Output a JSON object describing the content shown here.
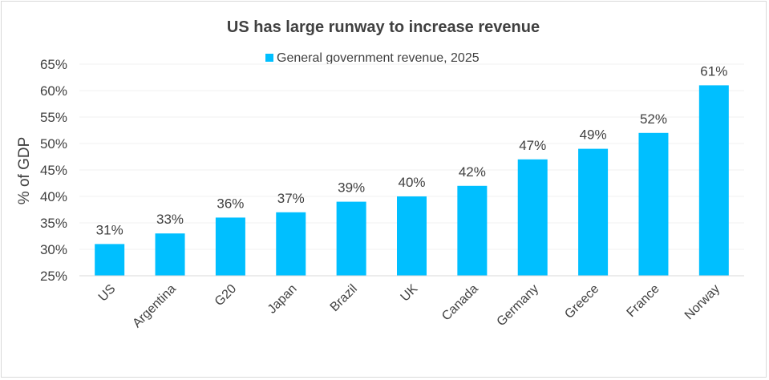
{
  "chart_data": {
    "type": "bar",
    "title": "US has large runway to increase revenue",
    "ylabel": "% of GDP",
    "xlabel": "",
    "categories": [
      "US",
      "Argentina",
      "G20",
      "Japan",
      "Brazil",
      "UK",
      "Canada",
      "Germany",
      "Greece",
      "France",
      "Norway"
    ],
    "series": [
      {
        "name": "General government revenue, 2025",
        "values": [
          31,
          33,
          36,
          37,
          39,
          40,
          42,
          47,
          49,
          52,
          61
        ],
        "data_labels": [
          "31%",
          "33%",
          "36%",
          "37%",
          "39%",
          "40%",
          "42%",
          "47%",
          "49%",
          "52%",
          "61%"
        ],
        "color": "#00BFFF"
      }
    ],
    "ylim": [
      25,
      65
    ],
    "yticks": [
      25,
      30,
      35,
      40,
      45,
      50,
      55,
      60,
      65
    ],
    "ytick_labels": [
      "25%",
      "30%",
      "35%",
      "40%",
      "45%",
      "50%",
      "55%",
      "60%",
      "65%"
    ],
    "grid": true,
    "legend": "top-center"
  }
}
